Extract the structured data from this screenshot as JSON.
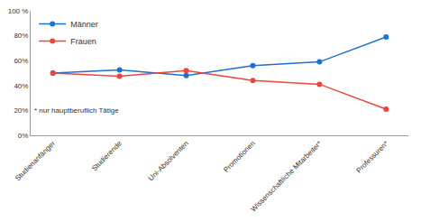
{
  "chart_data": {
    "type": "line",
    "categories": [
      "Studienanfänger",
      "Studierende",
      "Uni-Absolventen",
      "Promotionen",
      "Wissenschaftliche Mitarbeiter*",
      "Professuren*"
    ],
    "series": [
      {
        "name": "Männer",
        "color": "#1f6fd1",
        "values": [
          50,
          52.5,
          48,
          56,
          59,
          79
        ]
      },
      {
        "name": "Frauen",
        "color": "#e8473a",
        "values": [
          50,
          47.5,
          52,
          44,
          41,
          21
        ]
      }
    ],
    "ylim": [
      0,
      100
    ],
    "yticks": [
      {
        "value": 0,
        "label": "0%"
      },
      {
        "value": 20,
        "label": "20%"
      },
      {
        "value": 40,
        "label": "40%"
      },
      {
        "value": 60,
        "label": "60%"
      },
      {
        "value": 80,
        "label": "80%"
      },
      {
        "value": 100,
        "label": "100 %"
      }
    ],
    "grid": false,
    "legend": "top-left",
    "marker": "circle",
    "annotations": [
      "* nur hauptberuflich Tätige"
    ]
  }
}
